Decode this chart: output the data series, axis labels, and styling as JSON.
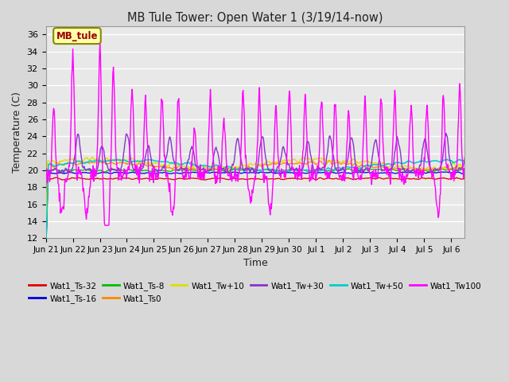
{
  "title": "MB Tule Tower: Open Water 1 (3/19/14-now)",
  "xlabel": "Time",
  "ylabel": "Temperature (C)",
  "ylim": [
    12,
    37
  ],
  "bg_color": "#d8d8d8",
  "plot_bg_color": "#e8e8e8",
  "grid_color": "#ffffff",
  "x_tick_labels": [
    "Jun 21",
    "Jun 22",
    "Jun 23",
    "Jun 24",
    "Jun 25",
    "Jun 26",
    "Jun 27",
    "Jun 28",
    "Jun 29",
    "Jun 30",
    "Jul 1",
    "Jul 2",
    "Jul 3",
    "Jul 4",
    "Jul 5",
    "Jul 6"
  ],
  "annotation_label": "MB_tule",
  "series_colors": {
    "Wat1_Ts-32": "#dd0000",
    "Wat1_Ts-16": "#0000dd",
    "Wat1_Ts-8": "#00bb00",
    "Wat1_Ts0": "#ff8800",
    "Wat1_Tw+10": "#dddd00",
    "Wat1_Tw+30": "#8833cc",
    "Wat1_Tw+50": "#00cccc",
    "Wat1_Tw100": "#ff00ff"
  }
}
